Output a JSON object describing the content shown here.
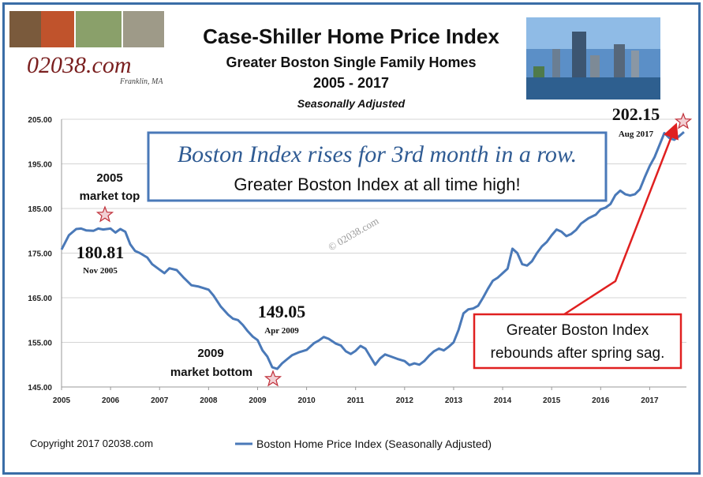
{
  "header": {
    "title": "Case-Shiller Home Price Index",
    "subtitle": "Greater Boston Single Family Homes",
    "years": "2005 - 2017",
    "adjustment": "Seasonally Adjusted"
  },
  "logo": {
    "text": "02038.com",
    "sub": "Franklin, MA"
  },
  "watermark": "© 02038.com",
  "copyright": "Copyright 2017 02038.com",
  "callout_box": {
    "line1": "Boston Index rises for 3rd month in a row.",
    "line2": "Greater Boston Index at all time high!"
  },
  "red_box": {
    "line1": "Greater Boston Index",
    "line2": "rebounds after spring sag."
  },
  "annotations": {
    "top_label_1": "2005",
    "top_label_2": "market top",
    "peak_value": "180.81",
    "peak_date": "Nov 2005",
    "trough_value": "149.05",
    "trough_date": "Apr 2009",
    "bottom_label_1": "2009",
    "bottom_label_2": "market bottom",
    "latest_value": "202.15",
    "latest_date": "Aug 2017"
  },
  "colors": {
    "line": "#4a79b8",
    "frame": "#3a6da6",
    "arrow": "#e02020",
    "star": "#c0303a",
    "grid": "#d4d4d4"
  },
  "chart_data": {
    "type": "line",
    "title": "Case-Shiller Home Price Index",
    "ylim": [
      145,
      205
    ],
    "yticks": [
      "145.00",
      "155.00",
      "165.00",
      "175.00",
      "185.00",
      "195.00",
      "205.00"
    ],
    "xticks": [
      "2005",
      "2006",
      "2007",
      "2008",
      "2009",
      "2010",
      "2011",
      "2012",
      "2013",
      "2014",
      "2015",
      "2016",
      "2017"
    ],
    "grid": true,
    "legend_position": "bottom",
    "series": [
      {
        "name": "Boston Home Price Index (Seasonally Adjusted)",
        "points": [
          [
            2005.0,
            175.8
          ],
          [
            2005.15,
            179.0
          ],
          [
            2005.3,
            180.4
          ],
          [
            2005.4,
            180.5
          ],
          [
            2005.5,
            180.1
          ],
          [
            2005.65,
            180.0
          ],
          [
            2005.75,
            180.5
          ],
          [
            2005.85,
            180.3
          ],
          [
            2006.0,
            180.5
          ],
          [
            2006.1,
            179.6
          ],
          [
            2006.2,
            180.4
          ],
          [
            2006.3,
            179.8
          ],
          [
            2006.4,
            177.0
          ],
          [
            2006.5,
            175.5
          ],
          [
            2006.6,
            175.0
          ],
          [
            2006.75,
            174.0
          ],
          [
            2006.85,
            172.5
          ],
          [
            2007.0,
            171.3
          ],
          [
            2007.1,
            170.5
          ],
          [
            2007.2,
            171.6
          ],
          [
            2007.35,
            171.2
          ],
          [
            2007.5,
            169.4
          ],
          [
            2007.65,
            167.8
          ],
          [
            2007.8,
            167.5
          ],
          [
            2008.0,
            166.8
          ],
          [
            2008.1,
            165.5
          ],
          [
            2008.25,
            163.0
          ],
          [
            2008.4,
            161.2
          ],
          [
            2008.5,
            160.3
          ],
          [
            2008.6,
            160.0
          ],
          [
            2008.7,
            158.9
          ],
          [
            2008.8,
            157.5
          ],
          [
            2008.9,
            156.3
          ],
          [
            2009.0,
            155.5
          ],
          [
            2009.1,
            153.2
          ],
          [
            2009.2,
            151.8
          ],
          [
            2009.3,
            149.4
          ],
          [
            2009.4,
            149.05
          ],
          [
            2009.5,
            150.3
          ],
          [
            2009.6,
            151.2
          ],
          [
            2009.7,
            152.1
          ],
          [
            2009.85,
            152.8
          ],
          [
            2010.0,
            153.3
          ],
          [
            2010.15,
            154.8
          ],
          [
            2010.25,
            155.4
          ],
          [
            2010.35,
            156.2
          ],
          [
            2010.45,
            155.8
          ],
          [
            2010.6,
            154.7
          ],
          [
            2010.7,
            154.3
          ],
          [
            2010.8,
            153.0
          ],
          [
            2010.9,
            152.4
          ],
          [
            2011.0,
            153.1
          ],
          [
            2011.1,
            154.2
          ],
          [
            2011.2,
            153.6
          ],
          [
            2011.3,
            151.8
          ],
          [
            2011.4,
            150.0
          ],
          [
            2011.5,
            151.4
          ],
          [
            2011.6,
            152.3
          ],
          [
            2011.7,
            151.9
          ],
          [
            2011.85,
            151.3
          ],
          [
            2012.0,
            150.8
          ],
          [
            2012.1,
            149.9
          ],
          [
            2012.2,
            150.3
          ],
          [
            2012.3,
            150.0
          ],
          [
            2012.4,
            150.8
          ],
          [
            2012.5,
            152.0
          ],
          [
            2012.6,
            153.0
          ],
          [
            2012.7,
            153.6
          ],
          [
            2012.8,
            153.2
          ],
          [
            2012.9,
            154.0
          ],
          [
            2013.0,
            155.0
          ],
          [
            2013.1,
            157.8
          ],
          [
            2013.2,
            161.5
          ],
          [
            2013.3,
            162.4
          ],
          [
            2013.4,
            162.6
          ],
          [
            2013.5,
            163.2
          ],
          [
            2013.6,
            165.0
          ],
          [
            2013.7,
            167.0
          ],
          [
            2013.8,
            168.8
          ],
          [
            2013.9,
            169.5
          ],
          [
            2014.0,
            170.5
          ],
          [
            2014.1,
            171.5
          ],
          [
            2014.2,
            176.0
          ],
          [
            2014.3,
            175.0
          ],
          [
            2014.4,
            172.5
          ],
          [
            2014.5,
            172.2
          ],
          [
            2014.6,
            173.2
          ],
          [
            2014.7,
            175.0
          ],
          [
            2014.8,
            176.5
          ],
          [
            2014.9,
            177.5
          ],
          [
            2015.0,
            179.0
          ],
          [
            2015.1,
            180.3
          ],
          [
            2015.2,
            179.8
          ],
          [
            2015.3,
            178.8
          ],
          [
            2015.4,
            179.3
          ],
          [
            2015.5,
            180.2
          ],
          [
            2015.6,
            181.6
          ],
          [
            2015.75,
            182.8
          ],
          [
            2015.9,
            183.6
          ],
          [
            2016.0,
            184.8
          ],
          [
            2016.1,
            185.2
          ],
          [
            2016.2,
            186.0
          ],
          [
            2016.3,
            188.0
          ],
          [
            2016.4,
            189.0
          ],
          [
            2016.5,
            188.2
          ],
          [
            2016.6,
            187.9
          ],
          [
            2016.7,
            188.2
          ],
          [
            2016.8,
            189.3
          ],
          [
            2016.9,
            192.0
          ],
          [
            2017.0,
            194.5
          ],
          [
            2017.1,
            196.5
          ],
          [
            2017.2,
            199.2
          ],
          [
            2017.3,
            201.9
          ],
          [
            2017.4,
            200.8
          ],
          [
            2017.5,
            200.4
          ],
          [
            2017.6,
            201.2
          ],
          [
            2017.7,
            202.15
          ]
        ]
      }
    ]
  }
}
